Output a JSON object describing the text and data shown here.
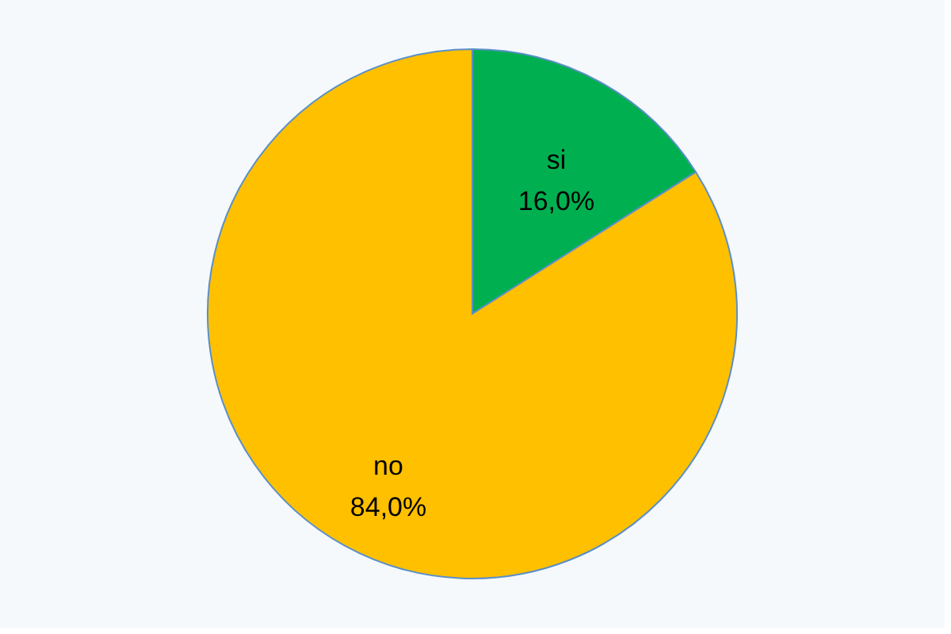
{
  "chart_data": {
    "type": "pie",
    "categories": [
      "si",
      "no"
    ],
    "values": [
      16.0,
      84.0
    ],
    "colors": [
      "#00b050",
      "#ffc000"
    ],
    "value_labels": [
      "16,0%",
      "84,0%"
    ]
  }
}
